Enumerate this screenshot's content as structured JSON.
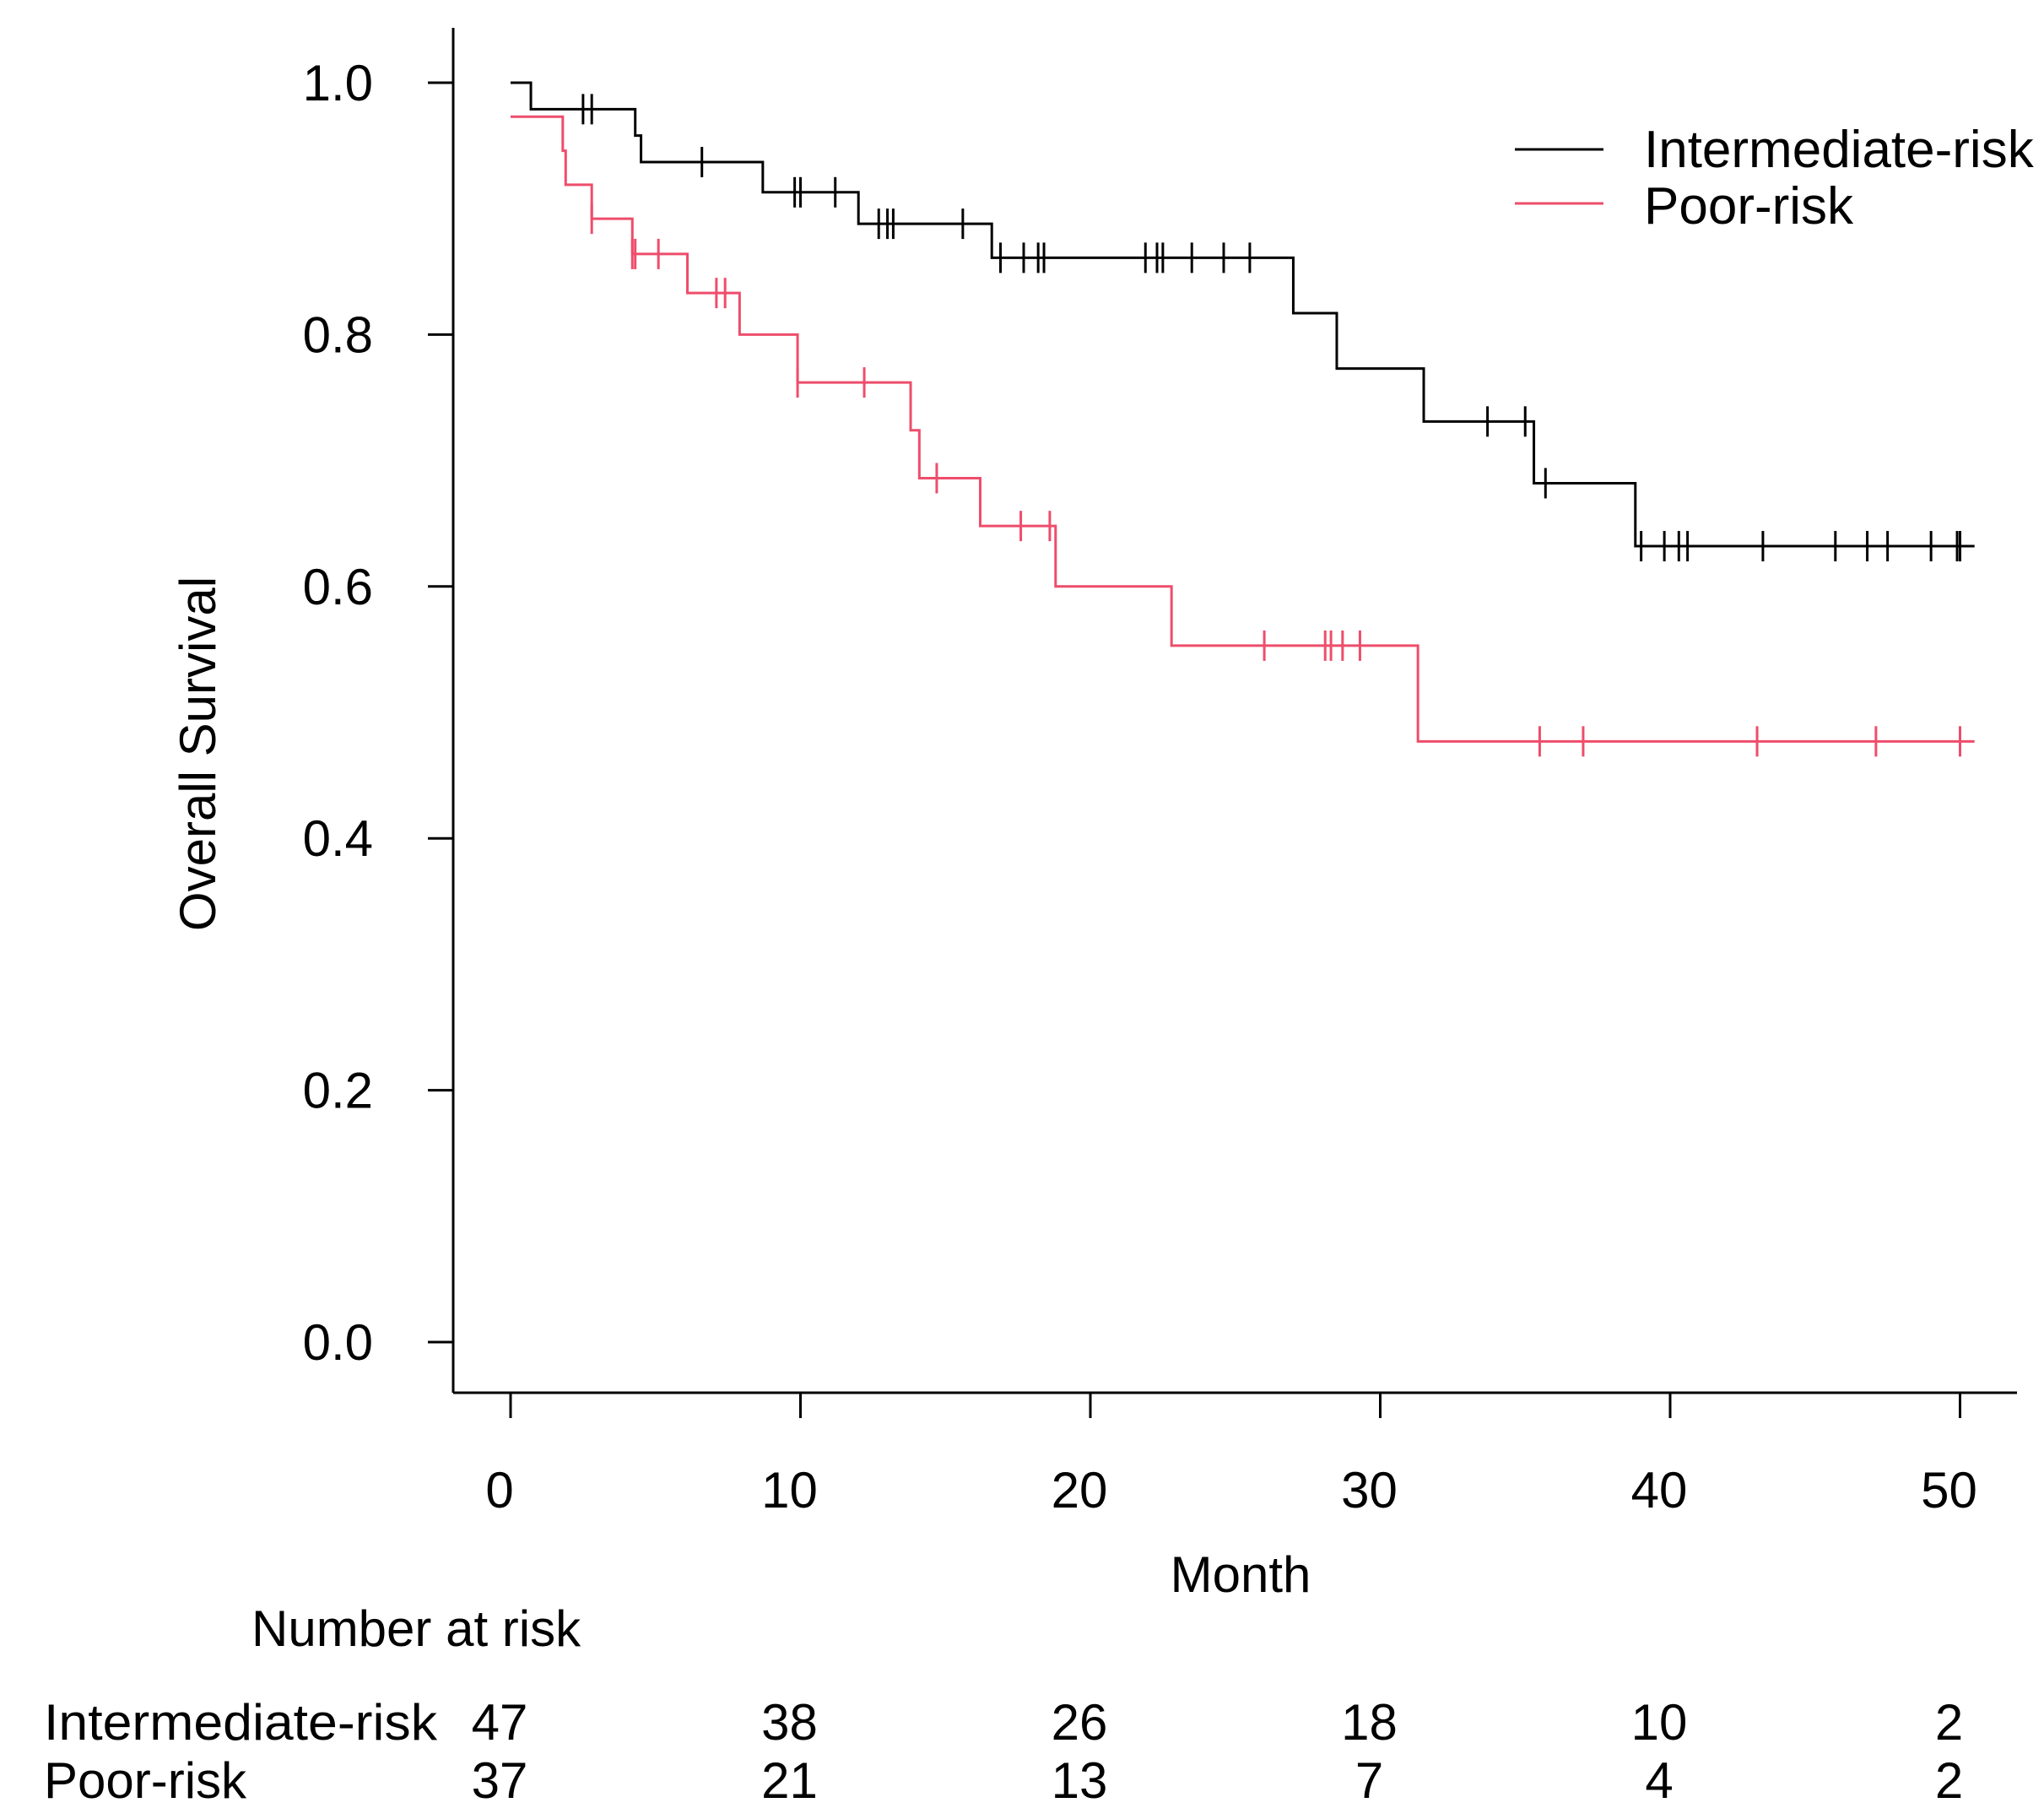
{
  "chart_data": {
    "type": "line",
    "subtype": "kaplan-meier",
    "title": "",
    "xlabel": "Month",
    "ylabel": "Overall Survival",
    "xlim": [
      -2,
      52
    ],
    "ylim": [
      -0.04,
      1.04
    ],
    "xticks": [
      0,
      10,
      20,
      30,
      40,
      50
    ],
    "yticks": [
      0.0,
      0.2,
      0.4,
      0.6,
      0.8,
      1.0
    ],
    "xtick_labels": [
      "0",
      "10",
      "20",
      "30",
      "40",
      "50"
    ],
    "ytick_labels": [
      "0.0",
      "0.2",
      "0.4",
      "0.6",
      "0.8",
      "1.0"
    ],
    "grid": false,
    "legend_position": "top-right",
    "series": [
      {
        "name": "Intermediate-risk",
        "color": "#000000",
        "steps": [
          [
            0.0,
            1.0
          ],
          [
            0.7,
            0.979
          ],
          [
            4.3,
            0.958
          ],
          [
            4.5,
            0.937
          ],
          [
            8.7,
            0.913
          ],
          [
            12.0,
            0.888
          ],
          [
            16.6,
            0.861
          ],
          [
            27.0,
            0.817
          ],
          [
            28.5,
            0.773
          ],
          [
            31.5,
            0.731
          ],
          [
            35.3,
            0.682
          ],
          [
            38.8,
            0.632
          ],
          [
            50.5,
            0.632
          ]
        ],
        "censor_times": [
          2.5,
          2.8,
          6.6,
          9.8,
          10.0,
          11.2,
          12.7,
          13.0,
          13.2,
          15.6,
          16.9,
          17.7,
          18.2,
          18.4,
          21.9,
          22.3,
          22.5,
          23.5,
          24.6,
          25.5,
          33.7,
          35.0,
          35.7,
          39.0,
          39.8,
          40.3,
          40.6,
          43.2,
          45.7,
          46.8,
          47.5,
          49.0,
          49.9,
          50.0
        ]
      },
      {
        "name": "Poor-risk",
        "color": "#ee4d6b",
        "steps": [
          [
            0.0,
            0.973
          ],
          [
            1.8,
            0.946
          ],
          [
            1.9,
            0.919
          ],
          [
            2.8,
            0.892
          ],
          [
            4.2,
            0.864
          ],
          [
            6.1,
            0.833
          ],
          [
            7.9,
            0.8
          ],
          [
            9.9,
            0.762
          ],
          [
            13.8,
            0.724
          ],
          [
            14.1,
            0.686
          ],
          [
            16.2,
            0.648
          ],
          [
            18.8,
            0.6
          ],
          [
            22.8,
            0.553
          ],
          [
            31.3,
            0.477
          ],
          [
            50.5,
            0.477
          ]
        ],
        "censor_times": [
          2.8,
          4.2,
          4.3,
          5.1,
          7.1,
          7.4,
          9.9,
          12.2,
          14.7,
          17.6,
          18.6,
          26.0,
          28.1,
          28.3,
          28.7,
          29.3,
          35.5,
          37.0,
          43.0,
          47.1,
          50.0
        ]
      }
    ],
    "number_at_risk": {
      "title": "Number at risk",
      "times": [
        0,
        10,
        20,
        30,
        40,
        50
      ],
      "rows": [
        {
          "label": "Intermediate-risk",
          "counts": [
            "47",
            "38",
            "26",
            "18",
            "10",
            "2"
          ]
        },
        {
          "label": "Poor-risk",
          "counts": [
            "37",
            "21",
            "13",
            "7",
            "4",
            "2"
          ]
        }
      ]
    }
  }
}
